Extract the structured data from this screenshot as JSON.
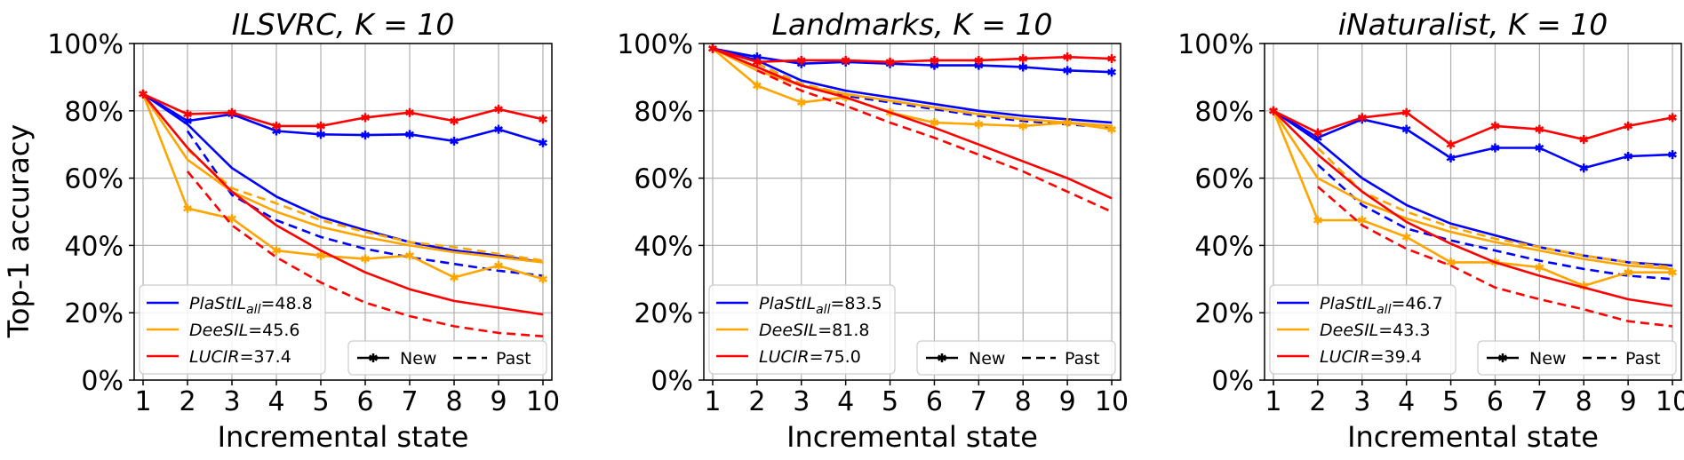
{
  "figure": {
    "ylabel": "Top-1 accuracy",
    "colors": {
      "PlaStIL": "#0000ff",
      "DeeSIL": "#ffa500",
      "LUCIR": "#ff0000",
      "grid": "#b0b0b0"
    },
    "style_legend": {
      "new_label": "New",
      "past_label": "Past"
    }
  },
  "chart_data": [
    {
      "type": "line",
      "title": "ILSVRC, K = 10",
      "xlabel": "Incremental state",
      "ylabel": "Top-1 accuracy",
      "x": [
        1,
        2,
        3,
        4,
        5,
        6,
        7,
        8,
        9,
        10
      ],
      "xticks": [
        "1",
        "2",
        "3",
        "4",
        "5",
        "6",
        "7",
        "8",
        "9",
        "10"
      ],
      "ylim": [
        0,
        100
      ],
      "yticks": [
        "0%",
        "20%",
        "40%",
        "60%",
        "80%",
        "100%"
      ],
      "grid": true,
      "legend": [
        {
          "method": "PlaStIL",
          "sub": "all",
          "value": "=48.8"
        },
        {
          "method": "DeeSIL",
          "sub": "",
          "value": "=45.6"
        },
        {
          "method": "LUCIR",
          "sub": "",
          "value": "=37.4"
        }
      ],
      "series": [
        {
          "name": "PlaStIL New",
          "method": "PlaStIL",
          "style": "new",
          "values": [
            85,
            77,
            79,
            74,
            73,
            72.8,
            73,
            71,
            74.5,
            70.5
          ]
        },
        {
          "name": "PlaStIL All",
          "method": "PlaStIL",
          "style": "all",
          "values": [
            85,
            76,
            63,
            54.5,
            48.5,
            44.5,
            41,
            38.5,
            37,
            35
          ]
        },
        {
          "name": "PlaStIL Past",
          "method": "PlaStIL",
          "style": "past",
          "values": [
            null,
            74,
            55,
            47.5,
            42.5,
            39,
            36.5,
            34.5,
            32.5,
            31
          ]
        },
        {
          "name": "DeeSIL New",
          "method": "DeeSIL",
          "style": "new",
          "values": [
            85,
            51,
            48,
            38.5,
            37,
            36,
            37,
            30.5,
            34,
            30
          ]
        },
        {
          "name": "DeeSIL All",
          "method": "DeeSIL",
          "style": "all",
          "values": [
            85,
            65.5,
            56,
            50,
            45.5,
            42.5,
            40,
            38,
            36.5,
            35
          ]
        },
        {
          "name": "DeeSIL Past",
          "method": "DeeSIL",
          "style": "past",
          "values": [
            null,
            68.5,
            57,
            52.5,
            47.5,
            44,
            41,
            39.5,
            37.5,
            35.5
          ]
        },
        {
          "name": "LUCIR New",
          "method": "LUCIR",
          "style": "new",
          "values": [
            85,
            79,
            79.5,
            75.5,
            75.5,
            78,
            79.5,
            77,
            80.5,
            77.5
          ]
        },
        {
          "name": "LUCIR All",
          "method": "LUCIR",
          "style": "all",
          "values": [
            85,
            69,
            56,
            46,
            38.5,
            32,
            27,
            23.5,
            21.5,
            19.5
          ]
        },
        {
          "name": "LUCIR Past",
          "method": "LUCIR",
          "style": "past",
          "values": [
            null,
            62,
            46,
            36.5,
            29,
            23,
            19,
            16,
            14,
            13
          ]
        }
      ]
    },
    {
      "type": "line",
      "title": "Landmarks, K = 10",
      "xlabel": "Incremental state",
      "ylabel": "",
      "x": [
        1,
        2,
        3,
        4,
        5,
        6,
        7,
        8,
        9,
        10
      ],
      "xticks": [
        "1",
        "2",
        "3",
        "4",
        "5",
        "6",
        "7",
        "8",
        "9",
        "10"
      ],
      "ylim": [
        0,
        100
      ],
      "yticks": [
        "0%",
        "20%",
        "40%",
        "60%",
        "80%",
        "100%"
      ],
      "grid": true,
      "legend": [
        {
          "method": "PlaStIL",
          "sub": "all",
          "value": "=83.5"
        },
        {
          "method": "DeeSIL",
          "sub": "",
          "value": "=81.8"
        },
        {
          "method": "LUCIR",
          "sub": "",
          "value": "=75.0"
        }
      ],
      "series": [
        {
          "name": "PlaStIL New",
          "method": "PlaStIL",
          "style": "new",
          "values": [
            98.5,
            96,
            94,
            94.5,
            94,
            93.5,
            93.5,
            93,
            92,
            91.5
          ]
        },
        {
          "name": "PlaStIL All",
          "method": "PlaStIL",
          "style": "all",
          "values": [
            98.5,
            95,
            89,
            86,
            84,
            82,
            80,
            78.5,
            77.5,
            76.5
          ]
        },
        {
          "name": "PlaStIL Past",
          "method": "PlaStIL",
          "style": "past",
          "values": [
            null,
            94,
            88,
            84.5,
            82.5,
            80.5,
            78.5,
            77,
            76,
            75
          ]
        },
        {
          "name": "DeeSIL New",
          "method": "DeeSIL",
          "style": "new",
          "values": [
            98.5,
            87.5,
            82.5,
            84,
            79.5,
            76.5,
            76,
            75.5,
            76.5,
            74.5
          ]
        },
        {
          "name": "DeeSIL All",
          "method": "DeeSIL",
          "style": "all",
          "values": [
            98.5,
            92,
            87.5,
            85,
            83,
            81,
            79,
            77.5,
            76.5,
            75.5
          ]
        },
        {
          "name": "DeeSIL Past",
          "method": "DeeSIL",
          "style": "past",
          "values": [
            null,
            94,
            88,
            85,
            83,
            81,
            79,
            77.5,
            76.5,
            75.5
          ]
        },
        {
          "name": "LUCIR New",
          "method": "LUCIR",
          "style": "new",
          "values": [
            98.5,
            94.5,
            95,
            95,
            94.5,
            95,
            95,
            95.5,
            96,
            95.5
          ]
        },
        {
          "name": "LUCIR All",
          "method": "LUCIR",
          "style": "all",
          "values": [
            98.5,
            93,
            87.5,
            84,
            79.5,
            75,
            70,
            65,
            60,
            54
          ]
        },
        {
          "name": "LUCIR Past",
          "method": "LUCIR",
          "style": "past",
          "values": [
            null,
            92,
            86,
            81.5,
            76.5,
            72,
            67,
            62,
            56,
            50
          ]
        }
      ]
    },
    {
      "type": "line",
      "title": "iNaturalist, K = 10",
      "xlabel": "Incremental state",
      "ylabel": "",
      "x": [
        1,
        2,
        3,
        4,
        5,
        6,
        7,
        8,
        9,
        10
      ],
      "xticks": [
        "1",
        "2",
        "3",
        "4",
        "5",
        "6",
        "7",
        "8",
        "9",
        "10"
      ],
      "ylim": [
        0,
        100
      ],
      "yticks": [
        "0%",
        "20%",
        "40%",
        "60%",
        "80%",
        "100%"
      ],
      "grid": true,
      "legend": [
        {
          "method": "PlaStIL",
          "sub": "all",
          "value": "=46.7"
        },
        {
          "method": "DeeSIL",
          "sub": "",
          "value": "=43.3"
        },
        {
          "method": "LUCIR",
          "sub": "",
          "value": "=39.4"
        }
      ],
      "series": [
        {
          "name": "PlaStIL New",
          "method": "PlaStIL",
          "style": "new",
          "values": [
            80,
            72,
            77.5,
            74.5,
            66,
            69,
            69,
            63,
            66.5,
            67
          ]
        },
        {
          "name": "PlaStIL All",
          "method": "PlaStIL",
          "style": "all",
          "values": [
            80,
            71,
            60,
            52,
            46.5,
            43,
            39.5,
            37,
            35,
            34
          ]
        },
        {
          "name": "PlaStIL Past",
          "method": "PlaStIL",
          "style": "past",
          "values": [
            null,
            64,
            52,
            45,
            41.5,
            38.5,
            35.5,
            33,
            31,
            30
          ]
        },
        {
          "name": "DeeSIL New",
          "method": "DeeSIL",
          "style": "new",
          "values": [
            80,
            47.5,
            47.5,
            42.5,
            35,
            35,
            33.5,
            28,
            32,
            32
          ]
        },
        {
          "name": "DeeSIL All",
          "method": "DeeSIL",
          "style": "all",
          "values": [
            80,
            60,
            53,
            48,
            44,
            41,
            38.5,
            36,
            34,
            33
          ]
        },
        {
          "name": "DeeSIL Past",
          "method": "DeeSIL",
          "style": "past",
          "values": [
            null,
            69,
            56,
            50,
            45.5,
            42,
            39.5,
            37,
            35,
            33.5
          ]
        },
        {
          "name": "LUCIR New",
          "method": "LUCIR",
          "style": "new",
          "values": [
            80,
            73.5,
            78,
            79.5,
            70,
            75.5,
            74.5,
            71.5,
            75.5,
            78
          ]
        },
        {
          "name": "LUCIR All",
          "method": "LUCIR",
          "style": "all",
          "values": [
            80,
            67,
            56,
            47,
            40.5,
            35,
            31,
            27.5,
            24,
            22
          ]
        },
        {
          "name": "LUCIR Past",
          "method": "LUCIR",
          "style": "past",
          "values": [
            null,
            57.5,
            46,
            39,
            34,
            27.5,
            24,
            21,
            17.5,
            16
          ]
        }
      ]
    }
  ]
}
